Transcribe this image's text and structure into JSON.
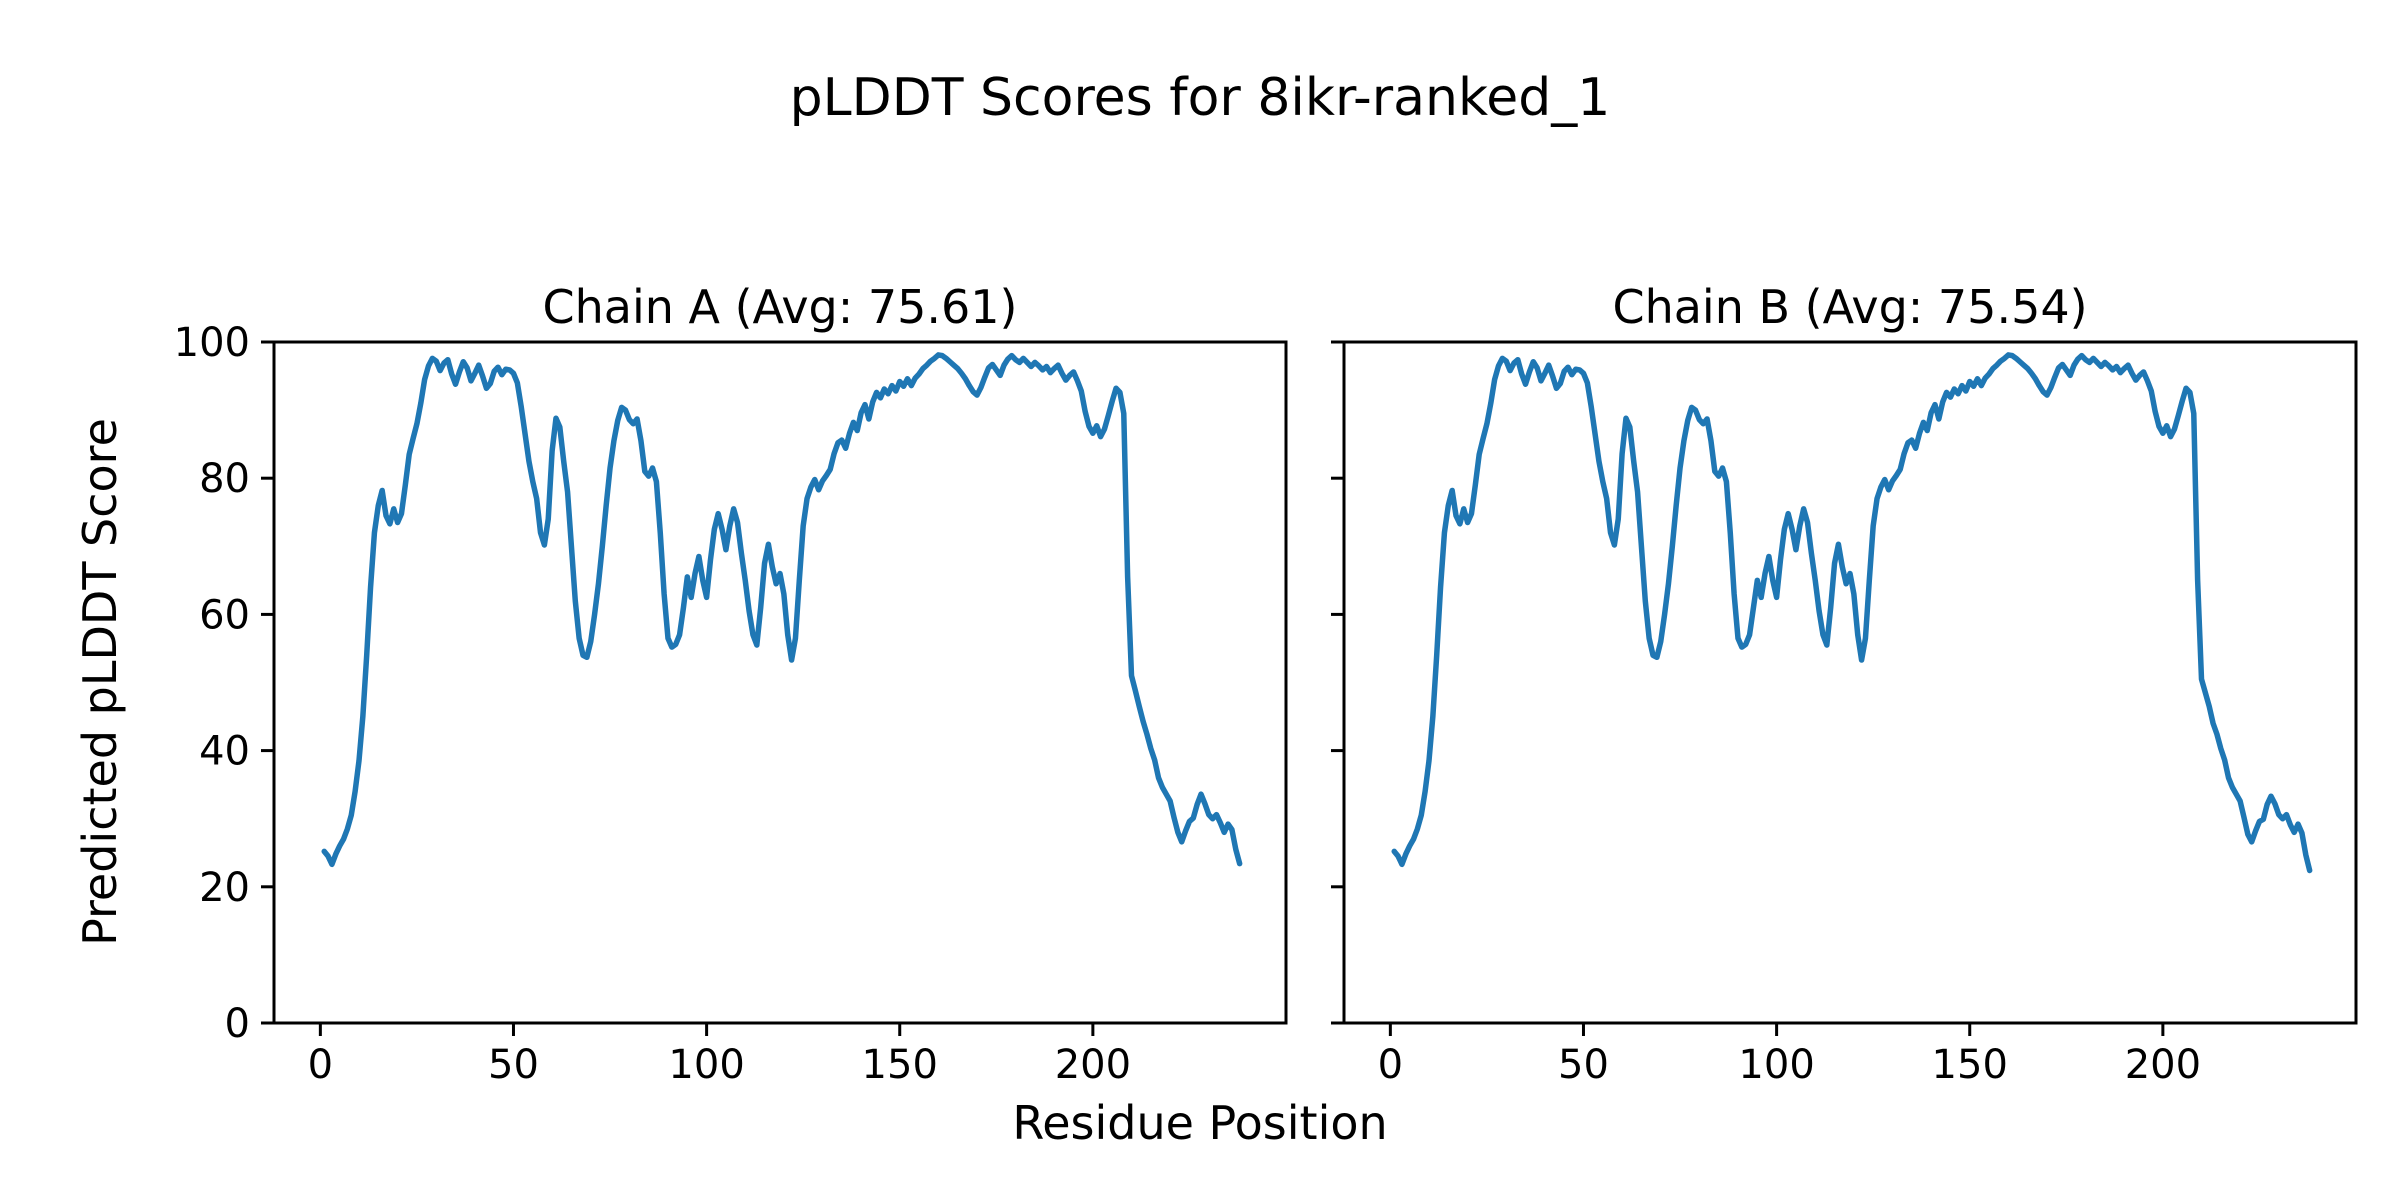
{
  "figure": {
    "title": "pLDDT Scores for 8ikr-ranked_1",
    "xlabel": "Residue Position",
    "ylabel": "Predicted pLDDT Score",
    "background_color": "#ffffff",
    "text_color": "#000000",
    "line_color": "#1f77b4"
  },
  "chart_data": [
    {
      "type": "line",
      "title": "Chain A (Avg: 75.61)",
      "avg": 75.61,
      "xlim": [
        -12,
        250
      ],
      "ylim": [
        0,
        100
      ],
      "x_ticks": [
        0,
        50,
        100,
        150,
        200
      ],
      "y_ticks": [
        0,
        20,
        40,
        60,
        80,
        100
      ],
      "show_y_tick_labels": true,
      "grid": false,
      "series": [
        {
          "name": "pLDDT",
          "color": "#1f77b4",
          "x_start": 1,
          "values": [
            25.2,
            24.5,
            23.3,
            24.8,
            26,
            27,
            28.5,
            30.5,
            34,
            38.5,
            45,
            54,
            64,
            72,
            76,
            78.2,
            74.5,
            73.3,
            75.5,
            73.5,
            74.8,
            79,
            83.5,
            85.8,
            88,
            91,
            94.5,
            96.5,
            97.6,
            97.2,
            95.8,
            96.9,
            97.4,
            95.3,
            93.8,
            95.6,
            97.1,
            96.2,
            94.3,
            95.4,
            96.6,
            95,
            93.2,
            93.9,
            95.7,
            96.3,
            95.2,
            96,
            95.9,
            95.4,
            94,
            90.5,
            86.5,
            82.5,
            79.5,
            77,
            72,
            70.2,
            74,
            84,
            88.8,
            87.5,
            82.5,
            78,
            70,
            62,
            56.5,
            54,
            53.7,
            56,
            60,
            64.5,
            70,
            76,
            81.5,
            85.5,
            88.5,
            90.4,
            90,
            88.6,
            88,
            88.7,
            85.5,
            81,
            80.3,
            81.5,
            79.5,
            72,
            63,
            56.5,
            55.2,
            55.6,
            57,
            61,
            65.5,
            62.5,
            66,
            68.5,
            65,
            62.5,
            68,
            72.5,
            74.8,
            72.5,
            69.5,
            73,
            75.5,
            73.5,
            69,
            65,
            60.5,
            57,
            55.5,
            61,
            67.5,
            70.3,
            67,
            64.5,
            66,
            63,
            57,
            53.3,
            56.5,
            65,
            73,
            77,
            78.7,
            79.8,
            78.3,
            79.6,
            80.4,
            81.3,
            83.6,
            85.2,
            85.6,
            84.4,
            86.6,
            88.2,
            87,
            89.6,
            90.8,
            88.7,
            91.2,
            92.6,
            91.8,
            93.1,
            92.4,
            93.6,
            92.8,
            94.2,
            93.5,
            94.6,
            93.6,
            94.7,
            95.3,
            96.1,
            96.6,
            97.2,
            97.6,
            98.1,
            98,
            97.6,
            97.1,
            96.6,
            96.1,
            95.4,
            94.6,
            93.6,
            92.7,
            92.2,
            93.3,
            94.8,
            96.2,
            96.7,
            95.9,
            95.1,
            96.6,
            97.5,
            98,
            97.4,
            97,
            97.6,
            97,
            96.4,
            97,
            96.5,
            95.9,
            96.4,
            95.5,
            96.1,
            96.6,
            95.4,
            94.4,
            95.1,
            95.6,
            94.3,
            92.8,
            89.8,
            87.6,
            86.6,
            87.7,
            86.1,
            87.2,
            89.2,
            91.3,
            93.2,
            92.6,
            89.5,
            65.5,
            51,
            48.8,
            46.5,
            44.3,
            42.4,
            40.3,
            38.6,
            36,
            34.6,
            33.6,
            32.6,
            30.2,
            28,
            26.6,
            28.2,
            29.6,
            30.1,
            32.1,
            33.6,
            32.2,
            30.6,
            30,
            30.6,
            29.4,
            28,
            29.2,
            28.4,
            25.5,
            23.4
          ]
        }
      ]
    },
    {
      "type": "line",
      "title": "Chain B (Avg: 75.54)",
      "avg": 75.54,
      "xlim": [
        -12,
        250
      ],
      "ylim": [
        0,
        100
      ],
      "x_ticks": [
        0,
        50,
        100,
        150,
        200
      ],
      "y_ticks": [
        0,
        20,
        40,
        60,
        80,
        100
      ],
      "show_y_tick_labels": false,
      "grid": false,
      "series": [
        {
          "name": "pLDDT",
          "color": "#1f77b4",
          "x_start": 1,
          "values": [
            25.2,
            24.5,
            23.3,
            24.8,
            26,
            27,
            28.5,
            30.5,
            34,
            38.5,
            45,
            54,
            64,
            72,
            76,
            78.2,
            74.5,
            73.3,
            75.5,
            73.5,
            74.8,
            79,
            83.5,
            85.8,
            88,
            91,
            94.5,
            96.5,
            97.6,
            97.2,
            95.8,
            96.9,
            97.4,
            95.3,
            93.8,
            95.6,
            97.1,
            96.2,
            94.3,
            95.4,
            96.6,
            95,
            93.2,
            93.9,
            95.7,
            96.3,
            95.2,
            96,
            95.9,
            95.4,
            94,
            90.5,
            86.5,
            82.5,
            79.5,
            77,
            72,
            70.2,
            74,
            83.6,
            88.8,
            87.5,
            82.5,
            78,
            70,
            62,
            56.5,
            54,
            53.7,
            56,
            60,
            64.5,
            70,
            76,
            81.5,
            85.5,
            88.5,
            90.4,
            90,
            88.6,
            88,
            88.7,
            85.5,
            81,
            80.3,
            81.5,
            79.5,
            72,
            63,
            56.5,
            55.2,
            55.6,
            57,
            61,
            65,
            62.5,
            66,
            68.5,
            65,
            62.5,
            68,
            72.5,
            74.8,
            72.5,
            69.5,
            73,
            75.5,
            73.5,
            69,
            65,
            60.5,
            57,
            55.5,
            61,
            67.5,
            70.3,
            67,
            64.5,
            66,
            63,
            57,
            53.3,
            56.5,
            65,
            73,
            77,
            78.7,
            79.8,
            78.3,
            79.6,
            80.4,
            81.3,
            83.6,
            85.2,
            85.6,
            84.4,
            86.6,
            88.2,
            87,
            89.6,
            90.8,
            88.7,
            91.2,
            92.6,
            91.9,
            93.1,
            92.4,
            93.6,
            92.8,
            94.2,
            93.5,
            94.6,
            93.6,
            94.7,
            95.3,
            96.1,
            96.6,
            97.2,
            97.6,
            98.1,
            98,
            97.6,
            97.1,
            96.6,
            96.1,
            95.4,
            94.6,
            93.6,
            92.7,
            92.2,
            93.3,
            94.8,
            96.2,
            96.7,
            95.9,
            95.1,
            96.6,
            97.5,
            98,
            97.4,
            97,
            97.6,
            97,
            96.4,
            97,
            96.5,
            95.9,
            96.4,
            95.5,
            96.1,
            96.6,
            95.4,
            94.4,
            95.1,
            95.6,
            94.3,
            92.8,
            89.8,
            87.6,
            86.6,
            87.7,
            86.1,
            87.2,
            89.2,
            91.3,
            93.2,
            92.6,
            89.5,
            65,
            50.5,
            48.5,
            46.5,
            44,
            42.4,
            40.3,
            38.6,
            36,
            34.6,
            33.6,
            32.6,
            30.2,
            27.7,
            26.6,
            28.2,
            29.6,
            29.9,
            32.1,
            33.3,
            32.2,
            30.6,
            30,
            30.6,
            29.1,
            28,
            29.2,
            27.9,
            24.7,
            22.4
          ]
        }
      ]
    }
  ]
}
